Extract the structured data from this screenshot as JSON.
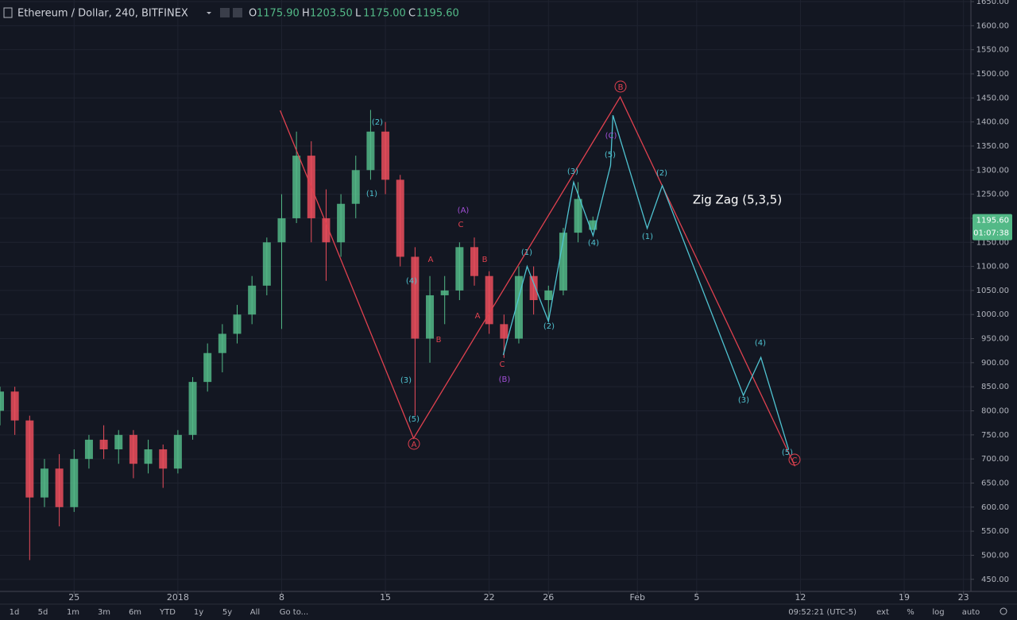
{
  "chart_data": {
    "type": "candlestick",
    "header": {
      "symbol": "Ethereum / Dollar, 240, BITFINEX",
      "ohlc": [
        {
          "key": "O",
          "value": "1175.90"
        },
        {
          "key": "H",
          "value": "1203.50"
        },
        {
          "key": "L",
          "value": "1175.00"
        },
        {
          "key": "C",
          "value": "1195.60"
        }
      ]
    },
    "up_color": "#53b987",
    "down_color": "#eb4d5c",
    "x": [
      -5,
      -4,
      -3,
      -2,
      -1,
      0,
      1,
      2,
      3,
      4,
      5,
      6,
      7,
      8,
      9,
      10,
      11,
      12,
      13,
      14,
      15,
      16,
      17,
      18,
      19,
      20,
      21,
      22,
      23,
      24,
      25,
      26,
      27,
      28,
      29,
      30,
      31,
      32,
      33,
      34,
      35
    ],
    "open": [
      800,
      840,
      780,
      620,
      680,
      600,
      700,
      740,
      720,
      750,
      690,
      720,
      680,
      750,
      860,
      920,
      960,
      1000,
      1060,
      1150,
      1200,
      1330,
      1200,
      1150,
      1230,
      1300,
      1380,
      1280,
      1120,
      950,
      1040,
      1050,
      1140,
      1080,
      980,
      950,
      1080,
      1030,
      1050,
      1170,
      1175.9
    ],
    "high": [
      850,
      850,
      790,
      700,
      710,
      720,
      750,
      770,
      760,
      760,
      740,
      730,
      760,
      870,
      940,
      980,
      1020,
      1080,
      1160,
      1250,
      1380,
      1360,
      1260,
      1250,
      1330,
      1425,
      1400,
      1290,
      1140,
      1080,
      1080,
      1150,
      1160,
      1090,
      1000,
      1100,
      1100,
      1060,
      1180,
      1275,
      1203.5
    ],
    "low": [
      770,
      750,
      490,
      600,
      560,
      590,
      680,
      700,
      690,
      660,
      670,
      640,
      670,
      740,
      840,
      880,
      940,
      980,
      1040,
      970,
      1190,
      1150,
      1070,
      1120,
      1200,
      1280,
      1250,
      1100,
      790,
      900,
      980,
      1030,
      1060,
      960,
      910,
      940,
      1000,
      990,
      1040,
      1150,
      1175
    ],
    "close": [
      840,
      780,
      620,
      680,
      600,
      700,
      740,
      720,
      750,
      690,
      720,
      680,
      750,
      860,
      920,
      960,
      1000,
      1060,
      1150,
      1200,
      1330,
      1200,
      1150,
      1230,
      1300,
      1380,
      1280,
      1120,
      950,
      1040,
      1050,
      1140,
      1080,
      980,
      950,
      1080,
      1030,
      1050,
      1170,
      1240,
      1195.6
    ],
    "waves": [
      {
        "color": "#e0414f",
        "x": [
          13.9,
          22.9,
          36.84,
          48.63
        ],
        "values": [
          1424,
          743,
          1452,
          685
        ]
      },
      {
        "color": "#4fc3d1",
        "x": [
          28.95,
          30.56,
          32.0,
          33.7,
          35.01,
          36.19,
          36.35,
          38.66,
          39.68,
          45.15,
          46.33,
          48.2
        ],
        "values": [
          916,
          1100,
          986,
          1275,
          1164,
          1310,
          1414,
          1179,
          1268,
          832,
          911,
          720
        ]
      }
    ],
    "annotations": [
      {
        "text": "(2)",
        "color": "#4fc3d1"
      },
      {
        "text": "(1)",
        "color": "#4fc3d1"
      },
      {
        "text": "(4)",
        "color": "#4fc3d1"
      },
      {
        "text": "(3)",
        "color": "#4fc3d1"
      },
      {
        "text": "(5)",
        "color": "#4fc3d1"
      },
      {
        "text": "A",
        "color": "#e0414f",
        "circled": true
      },
      {
        "text": "(A)",
        "color": "#a14fd6"
      },
      {
        "text": "C",
        "color": "#e0414f"
      },
      {
        "text": "A",
        "color": "#e0414f"
      },
      {
        "text": "B",
        "color": "#e0414f"
      },
      {
        "text": "B",
        "color": "#e0414f"
      },
      {
        "text": "A",
        "color": "#e0414f"
      },
      {
        "text": "C",
        "color": "#e0414f"
      },
      {
        "text": "(B)",
        "color": "#a14fd6"
      },
      {
        "text": "(1)",
        "color": "#4fc3d1"
      },
      {
        "text": "(2)",
        "color": "#4fc3d1"
      },
      {
        "text": "(3)",
        "color": "#4fc3d1"
      },
      {
        "text": "(4)",
        "color": "#4fc3d1"
      },
      {
        "text": "(5)",
        "color": "#4fc3d1"
      },
      {
        "text": "(C)",
        "color": "#a14fd6"
      },
      {
        "text": "B",
        "color": "#e0414f",
        "circled": true
      },
      {
        "text": "(2)",
        "color": "#4fc3d1"
      },
      {
        "text": "(1)",
        "color": "#4fc3d1"
      },
      {
        "text": "(3)",
        "color": "#4fc3d1"
      },
      {
        "text": "(4)",
        "color": "#4fc3d1"
      },
      {
        "text": "(5)",
        "color": "#4fc3d1"
      },
      {
        "text": "C",
        "color": "#e0414f",
        "circled": true
      },
      {
        "text": "Zig Zag (5,3,5)",
        "color": "#ffffff"
      }
    ],
    "xlim": [
      -5,
      60.5
    ],
    "xticks": [
      {
        "value": 0,
        "label": "25"
      },
      {
        "value": 7,
        "label": "2018"
      },
      {
        "value": 14,
        "label": "8"
      },
      {
        "value": 21,
        "label": "15"
      },
      {
        "value": 28,
        "label": "22"
      },
      {
        "value": 32,
        "label": "26"
      },
      {
        "value": 38,
        "label": "Feb"
      },
      {
        "value": 42,
        "label": "5"
      },
      {
        "value": 49,
        "label": "12"
      },
      {
        "value": 56,
        "label": "19"
      },
      {
        "value": 60,
        "label": "23"
      }
    ],
    "ylim": [
      424.87,
      1653.35
    ],
    "yticks": [
      {
        "value": 450,
        "label": "450.00"
      },
      {
        "value": 500,
        "label": "500.00"
      },
      {
        "value": 550,
        "label": "550.00"
      },
      {
        "value": 600,
        "label": "600.00"
      },
      {
        "value": 650,
        "label": "650.00"
      },
      {
        "value": 700,
        "label": "700.00"
      },
      {
        "value": 750,
        "label": "750.00"
      },
      {
        "value": 800,
        "label": "800.00"
      },
      {
        "value": 850,
        "label": "850.00"
      },
      {
        "value": 900,
        "label": "900.00"
      },
      {
        "value": 950,
        "label": "950.00"
      },
      {
        "value": 1000,
        "label": "1000.00"
      },
      {
        "value": 1050,
        "label": "1050.00"
      },
      {
        "value": 1100,
        "label": "1100.00"
      },
      {
        "value": 1150,
        "label": "1150.00"
      },
      {
        "value": 1200,
        "label": "1200.00"
      },
      {
        "value": 1250,
        "label": "1250.00"
      },
      {
        "value": 1300,
        "label": "1300.00"
      },
      {
        "value": 1350,
        "label": "1350.00"
      },
      {
        "value": 1400,
        "label": "1400.00"
      },
      {
        "value": 1450,
        "label": "1450.00"
      },
      {
        "value": 1500,
        "label": "1500.00"
      },
      {
        "value": 1550,
        "label": "1550.00"
      },
      {
        "value": 1600,
        "label": "1600.00"
      },
      {
        "value": 1650,
        "label": "1650.00"
      }
    ],
    "grid": true,
    "price_tag": {
      "value": 1195.6,
      "label": "1195.60",
      "countdown": "01:07:38"
    },
    "toolbar": {
      "ranges": [
        "1d",
        "5d",
        "1m",
        "3m",
        "6m",
        "YTD",
        "1y",
        "5y",
        "All",
        "Go to..."
      ],
      "time": "09:52:21 (UTC-5)",
      "options": [
        "ext",
        "%",
        "log",
        "auto"
      ]
    }
  }
}
